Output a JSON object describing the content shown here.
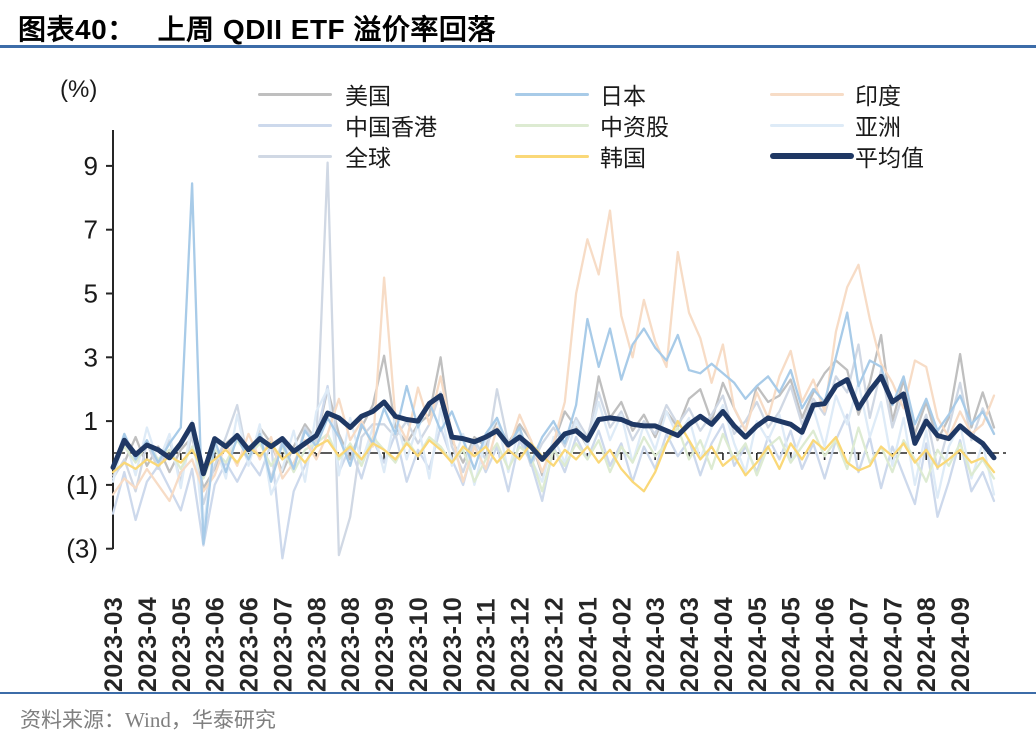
{
  "title": {
    "prefix": "图表40：",
    "text": "上周 QDII ETF 溢价率回落"
  },
  "footer": {
    "source_text": "资料来源：Wind，华泰研究"
  },
  "accent_colors": {
    "rule_blue": "#3C6CA8",
    "axis_dark": "#262626"
  },
  "chart_data": {
    "type": "line",
    "unit_label": "(%)",
    "ylim": [
      -3.5,
      10.2
    ],
    "y_ticks": [
      9,
      7,
      5,
      3,
      1,
      -1,
      -3
    ],
    "y_tick_labels": [
      "9",
      "7",
      "5",
      "3",
      "1",
      "(1)",
      "(3)"
    ],
    "grid": "off",
    "zero_line": "dash-dot",
    "legend_position": "top",
    "legend_order": [
      "美国",
      "日本",
      "印度",
      "中国香港",
      "中资股",
      "亚洲",
      "全球",
      "韩国",
      "平均值"
    ],
    "x_tick_every": 3,
    "n_points": 79,
    "x_tick_labels": [
      "2023-03",
      "2023-04",
      "2023-05",
      "2023-06",
      "2023-06",
      "2023-07",
      "2023-08",
      "2023-08",
      "2023-09",
      "2023-10",
      "2023-10",
      "2023-11",
      "2023-12",
      "2023-12",
      "2024-01",
      "2024-02",
      "2024-03",
      "2024-03",
      "2024-04",
      "2024-05",
      "2024-05",
      "2024-06",
      "2024-07",
      "2024-07",
      "2024-08",
      "2024-09"
    ],
    "series": [
      {
        "name": "美国",
        "slug": "us",
        "color": "#BFBFBF",
        "thick": false,
        "values": [
          -0.7,
          -0.3,
          0.5,
          -0.4,
          0.2,
          -0.6,
          0.1,
          0.5,
          -1.1,
          -0.5,
          0.3,
          0.6,
          -0.3,
          0.8,
          0.3,
          -0.6,
          0.2,
          0.9,
          0.4,
          2.0,
          0.6,
          -0.2,
          0.8,
          1.5,
          3.05,
          0.8,
          0.3,
          0.9,
          1.2,
          3.0,
          0.4,
          -0.3,
          0.5,
          0.2,
          1.0,
          0.3,
          0.9,
          0.4,
          -0.7,
          0.3,
          1.3,
          0.8,
          0.2,
          2.4,
          1.1,
          1.6,
          0.7,
          1.2,
          0.5,
          1.3,
          0.8,
          1.7,
          2.0,
          1.0,
          2.2,
          1.4,
          0.7,
          2.1,
          1.6,
          1.8,
          2.3,
          1.1,
          1.9,
          2.5,
          2.9,
          2.6,
          1.2,
          2.2,
          3.7,
          1.0,
          2.3,
          0.6,
          1.6,
          0.4,
          1.1,
          3.1,
          0.8,
          1.9,
          0.8
        ]
      },
      {
        "name": "中国香港",
        "slug": "hong-kong",
        "color": "#CDD9EC",
        "thick": false,
        "values": [
          -1.9,
          -0.6,
          -2.1,
          -0.9,
          -0.4,
          -1.1,
          -1.8,
          -0.5,
          -2.9,
          -1.0,
          -0.3,
          -0.9,
          -0.2,
          -0.7,
          0.3,
          -3.3,
          -1.2,
          -0.4,
          0.5,
          2.1,
          -0.6,
          0.2,
          -0.8,
          0.4,
          -0.3,
          0.6,
          -0.9,
          0.1,
          -0.5,
          0.8,
          -0.2,
          -1.0,
          0.3,
          -0.6,
          0.2,
          -1.2,
          0.4,
          -0.3,
          -1.5,
          0.2,
          -0.6,
          0.5,
          -0.2,
          0.7,
          -0.4,
          0.3,
          -0.9,
          0.2,
          -0.5,
          0.6,
          -0.1,
          0.4,
          -0.7,
          0.3,
          0.9,
          -0.4,
          0.2,
          -0.6,
          0.5,
          -0.2,
          0.7,
          -0.5,
          0.3,
          -0.8,
          0.4,
          1.2,
          -0.6,
          0.5,
          -1.1,
          0.2,
          -0.7,
          -1.6,
          0.3,
          -2.0,
          -0.9,
          0.4,
          -1.2,
          -0.6,
          -1.5
        ]
      },
      {
        "name": "全球",
        "slug": "global",
        "color": "#D0D8E4",
        "thick": false,
        "values": [
          -0.8,
          -0.2,
          -1.2,
          0.3,
          -0.5,
          0.4,
          -0.9,
          0.6,
          -1.6,
          -0.4,
          0.5,
          1.5,
          -0.3,
          0.6,
          -0.8,
          0.4,
          -0.5,
          0.8,
          0.3,
          9.1,
          -3.2,
          -2.0,
          0.5,
          0.9,
          0.9,
          0.5,
          1.0,
          0.3,
          0.9,
          1.9,
          0.2,
          -0.6,
          0.4,
          -0.2,
          2.0,
          0.3,
          0.7,
          -0.4,
          0.3,
          0.8,
          0.2,
          1.1,
          0.5,
          1.9,
          0.8,
          1.3,
          0.4,
          1.0,
          0.6,
          1.5,
          0.9,
          1.4,
          0.7,
          1.2,
          1.8,
          0.6,
          1.0,
          1.6,
          0.8,
          1.3,
          2.1,
          0.9,
          1.7,
          1.2,
          2.4,
          1.9,
          3.4,
          1.1,
          2.6,
          0.8,
          1.9,
          0.3,
          1.2,
          -0.5,
          0.8,
          2.2,
          0.4,
          1.4,
          0.6
        ]
      },
      {
        "name": "亚洲",
        "slug": "asia",
        "color": "#DEEBF7",
        "thick": false,
        "values": [
          -0.9,
          0.5,
          -0.7,
          0.8,
          -0.3,
          0.6,
          -1.1,
          1.0,
          -2.4,
          0.3,
          -0.8,
          1.2,
          -0.4,
          0.9,
          -1.3,
          -0.5,
          0.7,
          -0.9,
          1.3,
          2.0,
          -0.7,
          1.1,
          -0.3,
          0.8,
          -0.6,
          1.2,
          -0.2,
          0.9,
          -0.8,
          1.4,
          -0.4,
          0.6,
          -1.0,
          0.4,
          1.1,
          -0.6,
          0.8,
          -0.2,
          -0.9,
          0.5,
          -0.3,
          1.0,
          0.2,
          1.6,
          0.4,
          1.2,
          -0.3,
          0.9,
          0.1,
          1.3,
          0.5,
          1.1,
          -0.2,
          0.8,
          1.5,
          0.3,
          -0.6,
          1.0,
          0.4,
          1.2,
          -0.3,
          0.6,
          1.4,
          0.2,
          1.8,
          0.9,
          2.2,
          0.5,
          1.6,
          -0.4,
          1.1,
          -1.0,
          0.7,
          -1.4,
          0.2,
          0.9,
          -0.8,
          0.3,
          -1.3
        ]
      },
      {
        "name": "中资股",
        "slug": "china-stocks",
        "color": "#DDEBD2",
        "thick": false,
        "values": [
          -0.4,
          0.2,
          -0.3,
          0.3,
          -0.2,
          0.1,
          -0.5,
          0.2,
          -0.8,
          0.1,
          -0.3,
          0.4,
          -0.1,
          0.3,
          -0.4,
          0.2,
          -0.6,
          0.1,
          0.3,
          0.6,
          -0.2,
          0.3,
          -0.4,
          0.5,
          0.1,
          -0.3,
          0.4,
          -0.1,
          0.5,
          0.2,
          -0.3,
          0.1,
          -0.9,
          -0.2,
          0.3,
          -0.5,
          0.2,
          -0.1,
          -1.2,
          0.1,
          -0.4,
          0.3,
          -0.2,
          0.4,
          -0.6,
          0.2,
          -0.3,
          0.5,
          -0.1,
          0.3,
          0.8,
          -0.2,
          0.4,
          -0.5,
          0.6,
          -0.2,
          0.3,
          -0.7,
          0.2,
          0.5,
          -0.3,
          0.2,
          0.7,
          -0.1,
          0.4,
          -0.5,
          0.8,
          -0.3,
          0.2,
          -0.6,
          0.4,
          -0.2,
          -0.9,
          0.1,
          -0.4,
          0.3,
          -0.7,
          -0.2,
          -0.8
        ]
      },
      {
        "name": "印度",
        "slug": "india",
        "color": "#F7DCC6",
        "thick": false,
        "values": [
          -1.3,
          -0.8,
          -1.1,
          -0.5,
          -1.0,
          -1.5,
          -0.6,
          -0.2,
          -1.2,
          -0.7,
          0.3,
          -0.4,
          0.6,
          -0.2,
          0.5,
          -0.8,
          -0.3,
          0.4,
          -0.2,
          0.6,
          1.7,
          0.4,
          1.0,
          0.2,
          5.5,
          1.1,
          0.4,
          2.05,
          0.9,
          2.4,
          0.6,
          -0.9,
          0.2,
          -0.5,
          0.8,
          0.1,
          1.2,
          0.4,
          -0.6,
          0.3,
          1.6,
          5.0,
          6.7,
          5.6,
          7.6,
          4.3,
          3.0,
          4.8,
          3.5,
          2.7,
          6.3,
          4.4,
          3.6,
          2.2,
          3.4,
          1.4,
          0.7,
          1.9,
          1.1,
          2.4,
          3.2,
          1.6,
          2.3,
          1.3,
          3.8,
          5.2,
          5.9,
          4.2,
          2.8,
          2.2,
          1.4,
          2.9,
          2.7,
          1.1,
          0.5,
          1.3,
          0.6,
          0.9,
          1.8
        ]
      },
      {
        "name": "日本",
        "slug": "japan",
        "color": "#A8CBE8",
        "thick": false,
        "values": [
          -0.5,
          0.6,
          -0.2,
          0.4,
          -0.3,
          0.3,
          0.8,
          8.45,
          -2.85,
          0.4,
          -0.6,
          0.5,
          -0.2,
          0.6,
          -0.9,
          0.3,
          -0.5,
          0.7,
          0.2,
          1.1,
          0.5,
          -0.4,
          0.9,
          0.3,
          1.4,
          0.6,
          2.1,
          0.8,
          1.6,
          0.7,
          1.3,
          0.4,
          -0.5,
          0.6,
          1.1,
          0.2,
          0.8,
          -0.3,
          0.5,
          1.0,
          0.3,
          1.5,
          4.2,
          2.7,
          3.9,
          2.3,
          3.4,
          3.9,
          3.3,
          2.9,
          3.7,
          2.6,
          2.5,
          2.8,
          2.5,
          2.2,
          1.7,
          2.1,
          2.4,
          1.9,
          2.6,
          1.4,
          2.0,
          1.6,
          3.0,
          4.4,
          2.1,
          2.9,
          2.7,
          1.5,
          2.4,
          0.9,
          1.7,
          0.7,
          1.2,
          1.8,
          0.9,
          1.3,
          0.6
        ]
      },
      {
        "name": "韩国",
        "slug": "korea",
        "color": "#FAD878",
        "thick": false,
        "values": [
          -0.6,
          -0.3,
          -0.5,
          -0.2,
          -0.4,
          -0.1,
          -0.3,
          0.1,
          -0.5,
          -0.2,
          0.1,
          -0.3,
          0.2,
          -0.1,
          0.3,
          -0.2,
          0.1,
          -0.3,
          0.2,
          0.4,
          -0.1,
          0.2,
          -0.2,
          0.3,
          0.1,
          -0.2,
          0.3,
          -0.1,
          0.4,
          0.1,
          -0.3,
          0.2,
          -0.1,
          0.2,
          -0.3,
          0.1,
          -0.2,
          0.3,
          -0.1,
          -0.4,
          0.1,
          -0.2,
          0.2,
          -0.3,
          0.1,
          -0.5,
          -0.9,
          -1.2,
          -0.6,
          0.3,
          1.0,
          0.4,
          -0.2,
          0.2,
          -0.4,
          -0.1,
          -0.7,
          -0.3,
          0.2,
          -0.5,
          0.3,
          -0.2,
          0.4,
          0.1,
          0.5,
          -0.3,
          -0.55,
          -0.4,
          0.2,
          -0.1,
          0.3,
          -0.3,
          0.1,
          -0.45,
          -0.2,
          0.1,
          -0.3,
          -0.15,
          -0.6
        ]
      },
      {
        "name": "平均值",
        "slug": "average",
        "color": "#1F3864",
        "thick": true,
        "values": [
          -0.45,
          0.4,
          -0.05,
          0.25,
          0.1,
          -0.15,
          0.3,
          0.9,
          -0.65,
          0.45,
          0.2,
          0.55,
          0.1,
          0.45,
          0.2,
          0.45,
          0.05,
          0.3,
          0.55,
          1.25,
          1.1,
          0.8,
          1.15,
          1.3,
          1.6,
          1.15,
          1.05,
          1.0,
          1.55,
          1.8,
          0.5,
          0.45,
          0.35,
          0.5,
          0.7,
          0.25,
          0.5,
          0.2,
          -0.2,
          0.2,
          0.6,
          0.7,
          0.4,
          1.05,
          1.1,
          1.05,
          0.9,
          0.85,
          0.85,
          0.7,
          0.55,
          0.9,
          1.15,
          0.9,
          1.3,
          0.85,
          0.5,
          0.85,
          1.1,
          1.0,
          0.9,
          0.65,
          1.5,
          1.55,
          2.1,
          2.3,
          1.4,
          1.95,
          2.4,
          1.6,
          1.85,
          0.3,
          1.0,
          0.55,
          0.45,
          0.85,
          0.55,
          0.3,
          -0.15
        ]
      }
    ]
  }
}
